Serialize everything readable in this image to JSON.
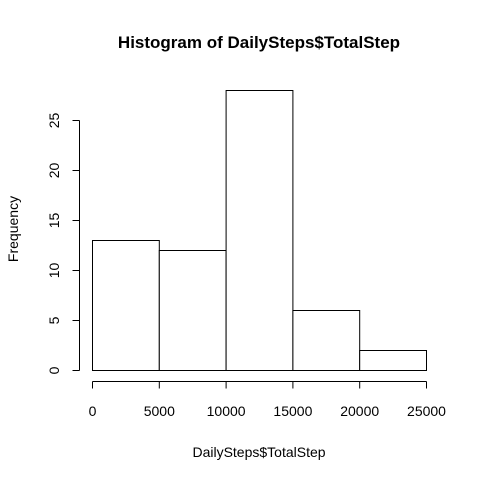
{
  "chart_data": {
    "type": "bar",
    "title": "Histogram of DailySteps$TotalStep",
    "xlabel": "DailySteps$TotalStep",
    "ylabel": "Frequency",
    "bins": [
      {
        "from": 0,
        "to": 5000,
        "count": 13
      },
      {
        "from": 5000,
        "to": 10000,
        "count": 12
      },
      {
        "from": 10000,
        "to": 15000,
        "count": 28
      },
      {
        "from": 15000,
        "to": 20000,
        "count": 6
      },
      {
        "from": 20000,
        "to": 25000,
        "count": 2
      }
    ],
    "xlim": [
      0,
      25000
    ],
    "ylim": [
      0,
      28
    ],
    "x_ticks": [
      0,
      5000,
      10000,
      15000,
      20000,
      25000
    ],
    "y_ticks": [
      0,
      5,
      10,
      15,
      20,
      25
    ],
    "grid": false,
    "bar_fill": "#ffffff",
    "bar_stroke": "#000000"
  }
}
